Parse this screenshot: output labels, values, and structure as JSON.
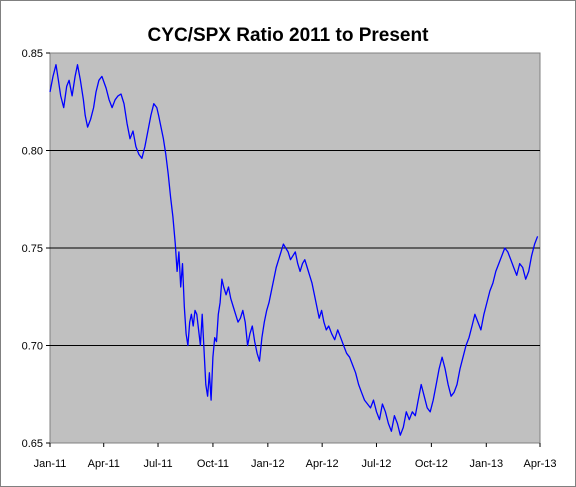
{
  "chart_data": {
    "type": "line",
    "title": "CYC/SPX Ratio 2011 to Present",
    "xlabel": "",
    "ylabel": "",
    "ylim": [
      0.65,
      0.85
    ],
    "y_ticks": [
      "0.85",
      "0.80",
      "0.75",
      "0.70",
      "0.65"
    ],
    "x_ticks": [
      "Jan-11",
      "Apr-11",
      "Jul-11",
      "Oct-11",
      "Jan-12",
      "Apr-12",
      "Jul-12",
      "Oct-12",
      "Jan-13",
      "Apr-13"
    ],
    "grid": "horizontal",
    "legend": "none",
    "plot_background": "#c0c0c0",
    "line_color": "#0000ff",
    "series": [
      {
        "x": [
          "2011-01-01",
          "2011-01-06",
          "2011-01-11",
          "2011-01-15",
          "2011-01-19",
          "2011-01-24",
          "2011-01-29",
          "2011-02-02",
          "2011-02-07",
          "2011-02-12",
          "2011-02-16",
          "2011-02-21",
          "2011-02-26",
          "2011-03-01",
          "2011-03-05",
          "2011-03-10",
          "2011-03-15",
          "2011-03-19",
          "2011-03-24",
          "2011-03-29",
          "2011-04-05",
          "2011-04-10",
          "2011-04-15",
          "2011-04-20",
          "2011-04-25",
          "2011-04-30",
          "2011-05-05",
          "2011-05-10",
          "2011-05-15",
          "2011-05-20",
          "2011-05-25",
          "2011-05-30",
          "2011-06-04",
          "2011-06-09",
          "2011-06-14",
          "2011-06-19",
          "2011-06-24",
          "2011-06-29",
          "2011-07-02",
          "2011-07-06",
          "2011-07-10",
          "2011-07-14",
          "2011-07-18",
          "2011-07-22",
          "2011-07-26",
          "2011-07-30",
          "2011-08-02",
          "2011-08-05",
          "2011-08-08",
          "2011-08-11",
          "2011-08-14",
          "2011-08-17",
          "2011-08-20",
          "2011-08-23",
          "2011-08-26",
          "2011-08-29",
          "2011-09-01",
          "2011-09-04",
          "2011-09-07",
          "2011-09-10",
          "2011-09-13",
          "2011-09-16",
          "2011-09-19",
          "2011-09-22",
          "2011-09-25",
          "2011-09-28",
          "2011-10-01",
          "2011-10-04",
          "2011-10-07",
          "2011-10-10",
          "2011-10-13",
          "2011-10-16",
          "2011-10-19",
          "2011-10-23",
          "2011-10-27",
          "2011-10-31",
          "2011-11-04",
          "2011-11-08",
          "2011-11-12",
          "2011-11-16",
          "2011-11-20",
          "2011-11-24",
          "2011-11-28",
          "2011-12-02",
          "2011-12-06",
          "2011-12-10",
          "2011-12-14",
          "2011-12-18",
          "2011-12-22",
          "2011-12-26",
          "2011-12-30",
          "2012-01-03",
          "2012-01-07",
          "2012-01-11",
          "2012-01-15",
          "2012-01-19",
          "2012-01-23",
          "2012-01-27",
          "2012-01-31",
          "2012-02-04",
          "2012-02-08",
          "2012-02-12",
          "2012-02-16",
          "2012-02-20",
          "2012-02-24",
          "2012-02-28",
          "2012-03-03",
          "2012-03-07",
          "2012-03-11",
          "2012-03-15",
          "2012-03-19",
          "2012-03-23",
          "2012-03-27",
          "2012-03-31",
          "2012-04-04",
          "2012-04-08",
          "2012-04-12",
          "2012-04-17",
          "2012-04-22",
          "2012-04-27",
          "2012-05-02",
          "2012-05-07",
          "2012-05-12",
          "2012-05-17",
          "2012-05-22",
          "2012-05-27",
          "2012-06-01",
          "2012-06-06",
          "2012-06-11",
          "2012-06-16",
          "2012-06-21",
          "2012-06-26",
          "2012-07-01",
          "2012-07-06",
          "2012-07-11",
          "2012-07-16",
          "2012-07-21",
          "2012-07-26",
          "2012-07-31",
          "2012-08-05",
          "2012-08-10",
          "2012-08-15",
          "2012-08-20",
          "2012-08-25",
          "2012-08-30",
          "2012-09-04",
          "2012-09-09",
          "2012-09-14",
          "2012-09-19",
          "2012-09-24",
          "2012-09-29",
          "2012-10-04",
          "2012-10-09",
          "2012-10-14",
          "2012-10-19",
          "2012-10-24",
          "2012-10-29",
          "2012-11-03",
          "2012-11-08",
          "2012-11-13",
          "2012-11-18",
          "2012-11-23",
          "2012-11-28",
          "2012-12-03",
          "2012-12-08",
          "2012-12-13",
          "2012-12-18",
          "2012-12-23",
          "2012-12-28",
          "2013-01-02",
          "2013-01-07",
          "2013-01-12",
          "2013-01-17",
          "2013-01-22",
          "2013-01-27",
          "2013-02-01",
          "2013-02-06",
          "2013-02-11",
          "2013-02-16",
          "2013-02-21",
          "2013-02-26",
          "2013-03-03",
          "2013-03-08",
          "2013-03-13",
          "2013-03-18",
          "2013-03-23",
          "2013-03-28"
        ],
        "values": [
          0.83,
          0.838,
          0.844,
          0.836,
          0.828,
          0.822,
          0.833,
          0.836,
          0.828,
          0.838,
          0.844,
          0.836,
          0.826,
          0.818,
          0.812,
          0.816,
          0.822,
          0.83,
          0.836,
          0.838,
          0.832,
          0.826,
          0.822,
          0.826,
          0.828,
          0.829,
          0.824,
          0.814,
          0.806,
          0.81,
          0.802,
          0.798,
          0.796,
          0.802,
          0.81,
          0.818,
          0.824,
          0.822,
          0.818,
          0.812,
          0.806,
          0.798,
          0.788,
          0.776,
          0.766,
          0.752,
          0.738,
          0.748,
          0.73,
          0.742,
          0.72,
          0.706,
          0.7,
          0.712,
          0.716,
          0.71,
          0.718,
          0.716,
          0.708,
          0.7,
          0.716,
          0.698,
          0.68,
          0.674,
          0.686,
          0.672,
          0.694,
          0.704,
          0.702,
          0.716,
          0.722,
          0.734,
          0.73,
          0.726,
          0.73,
          0.724,
          0.72,
          0.716,
          0.712,
          0.714,
          0.718,
          0.712,
          0.7,
          0.706,
          0.71,
          0.702,
          0.696,
          0.692,
          0.704,
          0.712,
          0.718,
          0.722,
          0.728,
          0.734,
          0.74,
          0.744,
          0.748,
          0.752,
          0.75,
          0.748,
          0.744,
          0.746,
          0.748,
          0.742,
          0.738,
          0.742,
          0.744,
          0.74,
          0.736,
          0.732,
          0.726,
          0.72,
          0.714,
          0.718,
          0.712,
          0.708,
          0.71,
          0.706,
          0.703,
          0.708,
          0.704,
          0.7,
          0.696,
          0.694,
          0.69,
          0.686,
          0.68,
          0.676,
          0.672,
          0.67,
          0.668,
          0.672,
          0.666,
          0.662,
          0.67,
          0.666,
          0.66,
          0.656,
          0.664,
          0.66,
          0.654,
          0.658,
          0.666,
          0.662,
          0.666,
          0.664,
          0.672,
          0.68,
          0.674,
          0.668,
          0.666,
          0.672,
          0.68,
          0.688,
          0.694,
          0.688,
          0.68,
          0.674,
          0.676,
          0.68,
          0.688,
          0.694,
          0.7,
          0.704,
          0.71,
          0.716,
          0.712,
          0.708,
          0.716,
          0.722,
          0.728,
          0.732,
          0.738,
          0.742,
          0.746,
          0.75,
          0.748,
          0.744,
          0.74,
          0.736,
          0.742,
          0.74,
          0.734,
          0.738,
          0.746,
          0.752,
          0.756
        ]
      }
    ]
  }
}
